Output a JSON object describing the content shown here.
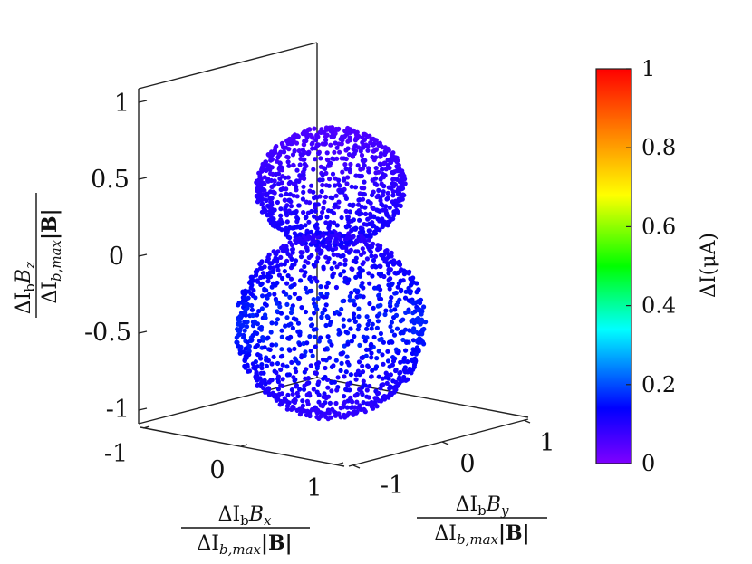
{
  "chart_data": {
    "type": "scatter3d",
    "title": "",
    "axes": {
      "x": {
        "ticks": [
          "-1",
          "0",
          "1"
        ],
        "range": [
          -1,
          1
        ]
      },
      "y": {
        "ticks": [
          "-1",
          "0",
          "1"
        ],
        "range": [
          -1,
          1
        ]
      },
      "z": {
        "ticks": [
          "1",
          "0.5",
          "0",
          "-0.5",
          "-1"
        ],
        "range": [
          -1,
          1
        ]
      }
    },
    "labels": {
      "x_num_main": "ΔI",
      "x_num_sub": "b",
      "x_num_var": "B",
      "x_num_varsub": "x",
      "y_num_main": "ΔI",
      "y_num_sub": "b",
      "y_num_var": "B",
      "y_num_varsub": "y",
      "z_num_main": "ΔI",
      "z_num_sub": "b",
      "z_num_var": "B",
      "z_num_varsub": "z",
      "den_main": "ΔI",
      "den_sub": "b,max",
      "den_tail": "|B|"
    },
    "colorbar": {
      "label": "ΔI(μA)",
      "ticks": [
        "1",
        "0.8",
        "0.6",
        "0.4",
        "0.2",
        "0"
      ],
      "range": [
        0,
        1
      ],
      "colormap": [
        "#7f00ff",
        "#0000ff",
        "#00ffff",
        "#00ff00",
        "#ffff00",
        "#ff8000",
        "#ff0000"
      ]
    },
    "shapes": [
      {
        "name": "upper-lobe",
        "center_z": 0.45,
        "radius_z": 0.37,
        "radius_xy": 0.55,
        "value_range": [
          0.04,
          0.14
        ]
      },
      {
        "name": "lower-lobe",
        "center_z": -0.45,
        "radius_z": 0.58,
        "radius_xy": 0.7,
        "value_range": [
          0.04,
          0.17
        ]
      }
    ]
  }
}
